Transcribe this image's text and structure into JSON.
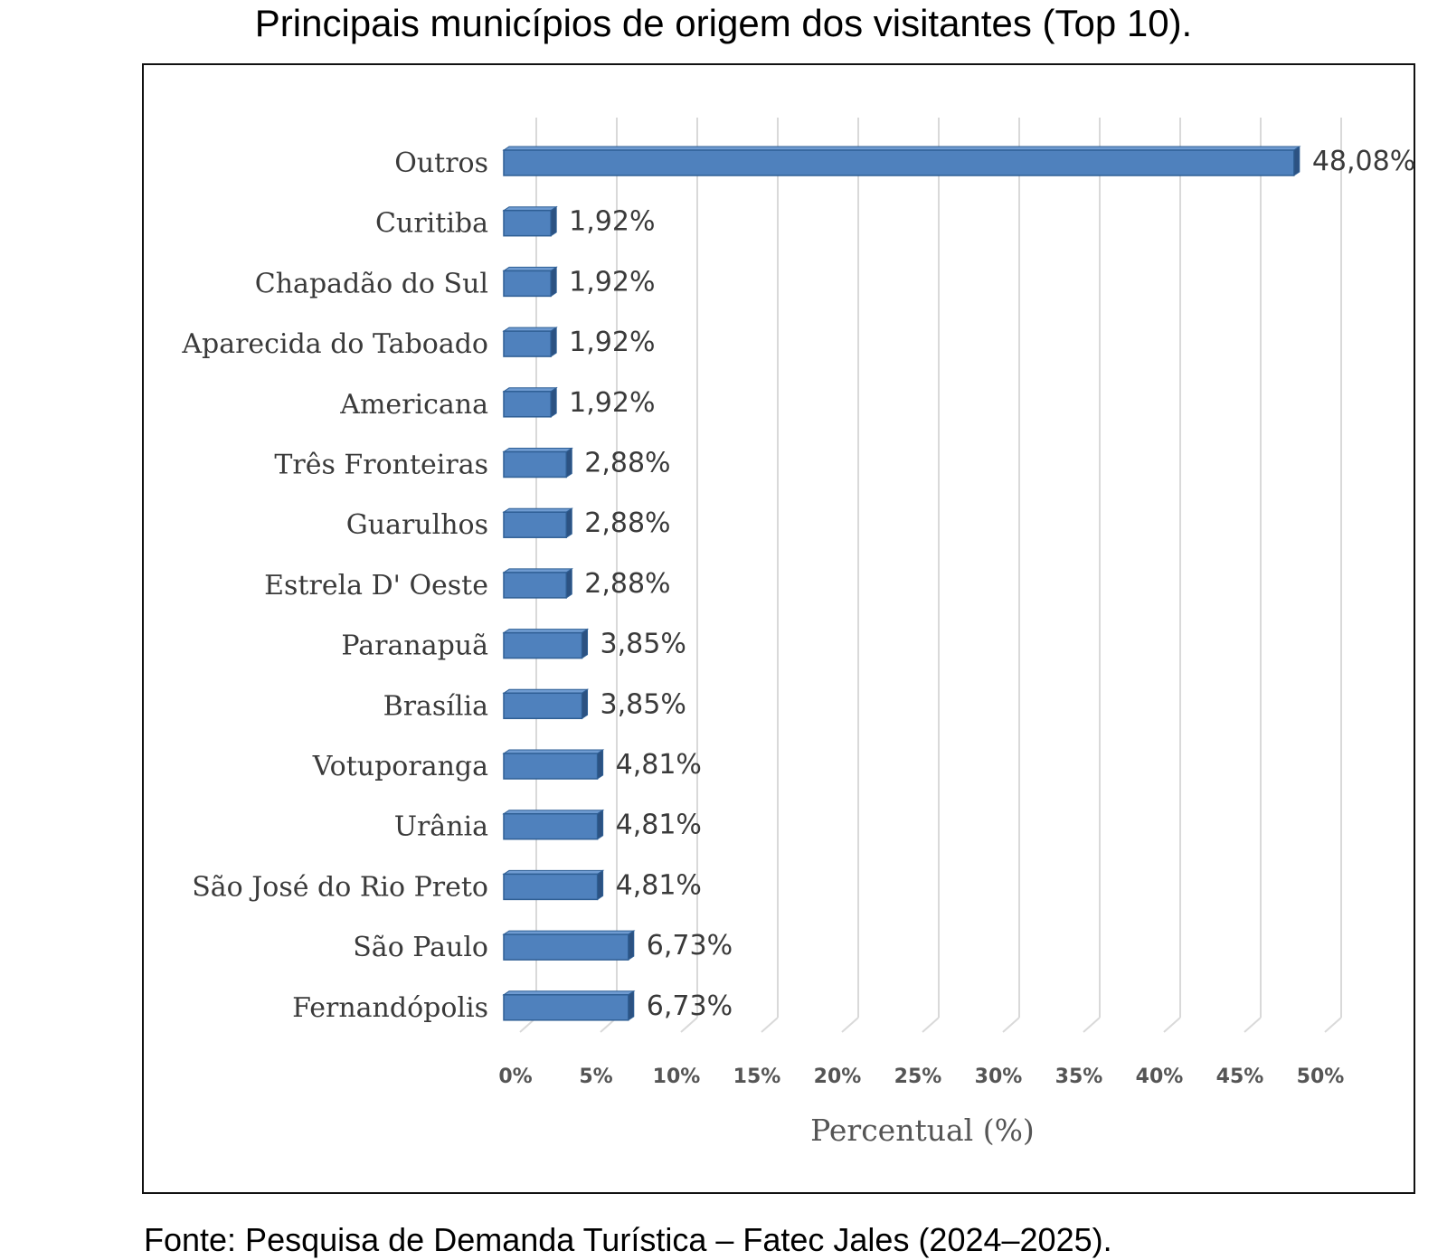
{
  "title": "Principais municípios de origem dos visitantes (Top 10).",
  "source": "Fonte: Pesquisa de Demanda Turística – Fatec Jales (2024–2025).",
  "chart_data": {
    "type": "bar",
    "orientation": "horizontal",
    "style": "3d",
    "categories": [
      "Outros",
      "Curitiba",
      "Chapadão do Sul",
      "Aparecida do Taboado",
      "Americana",
      "Três Fronteiras",
      "Guarulhos",
      "Estrela D' Oeste",
      "Paranapuã",
      "Brasília",
      "Votuporanga",
      "Urânia",
      "São José do Rio Preto",
      "São Paulo",
      "Fernandópolis"
    ],
    "values": [
      48.08,
      1.92,
      1.92,
      1.92,
      1.92,
      2.88,
      2.88,
      2.88,
      3.85,
      3.85,
      4.81,
      4.81,
      4.81,
      6.73,
      6.73
    ],
    "data_labels": [
      "48,08%",
      "1,92%",
      "1,92%",
      "1,92%",
      "1,92%",
      "2,88%",
      "2,88%",
      "2,88%",
      "3,85%",
      "3,85%",
      "4,81%",
      "4,81%",
      "4,81%",
      "6,73%",
      "6,73%"
    ],
    "x_ticks": [
      "0%",
      "5%",
      "10%",
      "15%",
      "20%",
      "25%",
      "30%",
      "35%",
      "40%",
      "45%",
      "50%"
    ],
    "xlabel": "Percentual (%)",
    "ylabel": "",
    "xlim": [
      0,
      50
    ],
    "grid": "vertical",
    "bar_color": "#4f81bd",
    "bar_edge_color": "#2f5f95",
    "grid_color": "#d9d9d9"
  }
}
